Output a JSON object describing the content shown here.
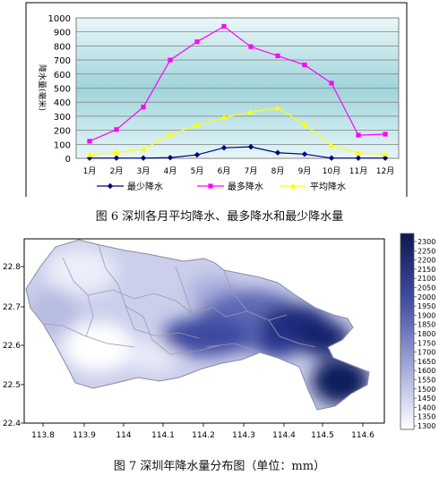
{
  "figure6": {
    "caption": "图 6    深圳各月平均降水、最多降水和最少降水量",
    "chart_data": {
      "type": "line",
      "categories": [
        "1月",
        "2月",
        "3月",
        "4月",
        "5月",
        "6月",
        "7月",
        "8月",
        "9月",
        "10月",
        "11月",
        "12月"
      ],
      "series": [
        {
          "name": "最少降水",
          "color": "#000080",
          "values": [
            2,
            2,
            2,
            5,
            25,
            75,
            82,
            40,
            30,
            2,
            2,
            2
          ]
        },
        {
          "name": "最多降水",
          "color": "#ff00ff",
          "values": [
            122,
            205,
            365,
            700,
            830,
            940,
            795,
            730,
            665,
            535,
            165,
            172
          ]
        },
        {
          "name": "平均降水",
          "color": "#ffff00",
          "values": [
            25,
            42,
            65,
            170,
            235,
            290,
            330,
            360,
            240,
            92,
            38,
            30
          ]
        }
      ],
      "ylabel": "降水量(毫米)",
      "yticks": [
        0,
        100,
        200,
        300,
        400,
        500,
        600,
        700,
        800,
        900,
        1000
      ],
      "ylim": [
        0,
        1000
      ],
      "grid": true,
      "legend_position": "bottom"
    }
  },
  "figure7": {
    "caption": "图 7    深圳年降水量分布图（单位：mm）",
    "map": {
      "lon_ticks": [
        "113.8",
        "113.9",
        "114",
        "114.1",
        "114.2",
        "114.3",
        "114.4",
        "114.5",
        "114.6"
      ],
      "lat_ticks": [
        "22.8",
        "22.7",
        "22.6",
        "22.5",
        "22.4"
      ],
      "colorbar_ticks": [
        "2300",
        "2250",
        "2200",
        "2150",
        "2100",
        "2050",
        "2000",
        "1950",
        "1900",
        "1850",
        "1800",
        "1750",
        "1700",
        "1650",
        "1600",
        "1550",
        "1500",
        "1450",
        "1400",
        "1350",
        "1300"
      ]
    }
  }
}
